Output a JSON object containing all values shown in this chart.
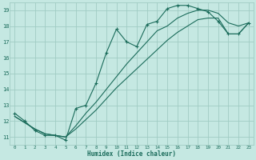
{
  "xlabel": "Humidex (Indice chaleur)",
  "bg_color": "#c5e8e2",
  "grid_color": "#a0ccC4",
  "line_color": "#1a6b5a",
  "xticks": [
    0,
    1,
    2,
    3,
    4,
    5,
    6,
    7,
    8,
    9,
    10,
    11,
    12,
    13,
    14,
    15,
    16,
    17,
    18,
    19,
    20,
    21,
    22,
    23
  ],
  "yticks": [
    11,
    12,
    13,
    14,
    15,
    16,
    17,
    18,
    19
  ],
  "xlim": [
    -0.5,
    23.5
  ],
  "ylim": [
    10.5,
    19.5
  ],
  "line1_x": [
    0,
    1,
    2,
    3,
    4,
    5,
    6,
    7,
    8,
    9,
    10,
    11,
    12,
    13,
    14,
    15,
    16,
    17,
    18,
    19,
    20,
    21,
    22,
    23
  ],
  "line1_y": [
    12.5,
    12.0,
    11.4,
    11.1,
    11.1,
    10.8,
    12.8,
    13.0,
    14.4,
    16.3,
    17.8,
    17.0,
    16.7,
    18.1,
    18.3,
    19.1,
    19.3,
    19.3,
    19.1,
    18.9,
    18.3,
    17.5,
    17.5,
    18.2
  ],
  "line2_x": [
    0,
    1,
    2,
    3,
    4,
    5,
    6,
    7,
    8,
    9,
    10,
    11,
    12,
    13,
    14,
    15,
    16,
    17,
    18,
    19,
    20,
    21,
    22,
    23
  ],
  "line2_y": [
    12.3,
    11.9,
    11.5,
    11.2,
    11.1,
    11.0,
    11.5,
    12.1,
    12.7,
    13.4,
    14.1,
    14.7,
    15.3,
    15.9,
    16.5,
    17.1,
    17.6,
    18.0,
    18.4,
    18.5,
    18.5,
    17.5,
    17.5,
    18.2
  ],
  "line3_x": [
    0,
    1,
    2,
    3,
    4,
    5,
    6,
    7,
    8,
    9,
    10,
    11,
    12,
    13,
    14,
    15,
    16,
    17,
    18,
    19,
    20,
    21,
    22,
    23
  ],
  "line3_y": [
    12.3,
    11.9,
    11.5,
    11.2,
    11.1,
    11.0,
    11.7,
    12.5,
    13.2,
    14.0,
    14.8,
    15.6,
    16.3,
    17.0,
    17.7,
    18.0,
    18.5,
    18.8,
    19.0,
    19.0,
    18.8,
    18.2,
    18.0,
    18.2
  ]
}
